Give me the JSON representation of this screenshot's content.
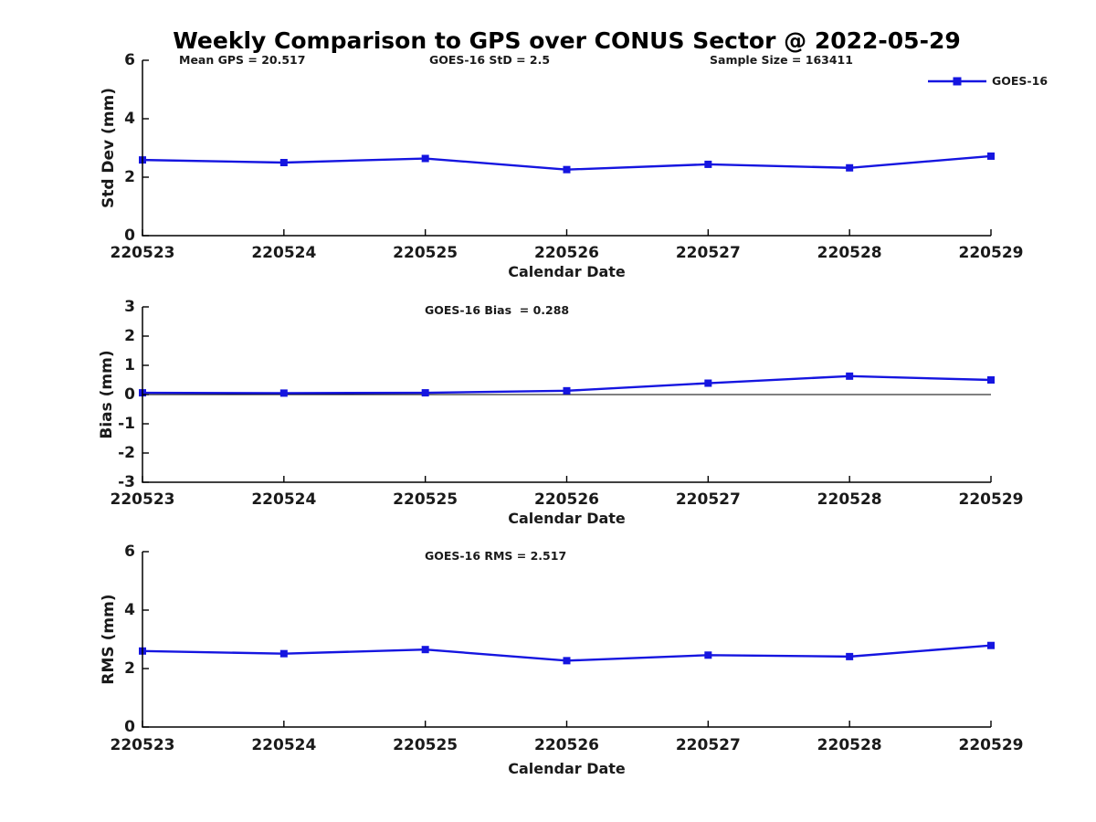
{
  "title": "Weekly Comparison to GPS over CONUS Sector @ 2022-05-29",
  "legend": {
    "label": "GOES-16",
    "color": "#1515e0",
    "marker": "square"
  },
  "colors": {
    "line": "#1515e0",
    "axis": "#000000",
    "text": "#1a1a1a",
    "background": "#ffffff"
  },
  "chart_data": [
    {
      "type": "line",
      "ylabel": "Std Dev (mm)",
      "xlabel": "Calendar Date",
      "ylim": [
        0,
        6
      ],
      "yticks": [
        0,
        2,
        4,
        6
      ],
      "grid": false,
      "legend_position": "top-right",
      "categories": [
        "220523",
        "220524",
        "220525",
        "220526",
        "220527",
        "220528",
        "220529"
      ],
      "annotations": [
        "Mean GPS = 20.517",
        "GOES-16 StD = 2.5",
        "Sample Size = 163411"
      ],
      "series": [
        {
          "name": "GOES-16",
          "values": [
            2.59,
            2.5,
            2.64,
            2.26,
            2.44,
            2.32,
            2.72
          ]
        }
      ]
    },
    {
      "type": "line",
      "ylabel": "Bias (mm)",
      "xlabel": "Calendar Date",
      "ylim": [
        -3,
        3
      ],
      "yticks": [
        -3,
        -2,
        -1,
        0,
        1,
        2,
        3
      ],
      "grid": false,
      "zero_line": true,
      "categories": [
        "220523",
        "220524",
        "220525",
        "220526",
        "220527",
        "220528",
        "220529"
      ],
      "annotations": [
        "GOES-16 Bias  = 0.288"
      ],
      "series": [
        {
          "name": "GOES-16",
          "values": [
            0.06,
            0.05,
            0.06,
            0.13,
            0.39,
            0.63,
            0.5
          ]
        }
      ]
    },
    {
      "type": "line",
      "ylabel": "RMS (mm)",
      "xlabel": "Calendar Date",
      "ylim": [
        0,
        6
      ],
      "yticks": [
        0,
        2,
        4,
        6
      ],
      "grid": false,
      "categories": [
        "220523",
        "220524",
        "220525",
        "220526",
        "220527",
        "220528",
        "220529"
      ],
      "annotations": [
        "GOES-16 RMS = 2.517"
      ],
      "series": [
        {
          "name": "GOES-16",
          "values": [
            2.6,
            2.51,
            2.65,
            2.27,
            2.46,
            2.41,
            2.79
          ]
        }
      ]
    }
  ]
}
